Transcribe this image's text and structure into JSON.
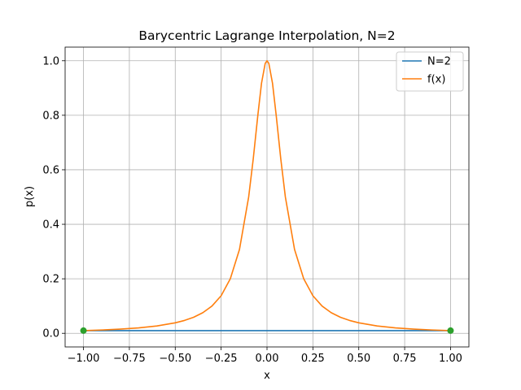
{
  "chart_data": {
    "type": "line",
    "title": "Barycentric Lagrange Interpolation, N=2",
    "xlabel": "x",
    "ylabel": "p(x)",
    "xlim": [
      -1.1,
      1.1
    ],
    "ylim": [
      -0.05,
      1.05
    ],
    "xticks": [
      -1.0,
      -0.75,
      -0.5,
      -0.25,
      0.0,
      0.25,
      0.5,
      0.75,
      1.0
    ],
    "xtick_labels": [
      "−1.00",
      "−0.75",
      "−0.50",
      "−0.25",
      "0.00",
      "0.25",
      "0.50",
      "0.75",
      "1.00"
    ],
    "yticks": [
      0.0,
      0.2,
      0.4,
      0.6,
      0.8,
      1.0
    ],
    "ytick_labels": [
      "0.0",
      "0.2",
      "0.4",
      "0.6",
      "0.8",
      "1.0"
    ],
    "grid": true,
    "legend_position": "top-right",
    "series": [
      {
        "name": "N=2",
        "color": "#1f77b4",
        "x": [
          -1.0,
          1.0
        ],
        "y": [
          0.0099,
          0.0099
        ]
      },
      {
        "name": "f(x)",
        "color": "#ff7f0e",
        "x": [
          -1.0,
          -0.9,
          -0.8,
          -0.7,
          -0.6,
          -0.5,
          -0.45,
          -0.4,
          -0.35,
          -0.3,
          -0.25,
          -0.2,
          -0.15,
          -0.1,
          -0.075,
          -0.05,
          -0.03,
          -0.01,
          0.0,
          0.01,
          0.03,
          0.05,
          0.075,
          0.1,
          0.15,
          0.2,
          0.25,
          0.3,
          0.35,
          0.4,
          0.45,
          0.5,
          0.6,
          0.7,
          0.8,
          0.9,
          1.0
        ],
        "y": [
          0.0099,
          0.0122,
          0.0154,
          0.02,
          0.027,
          0.0385,
          0.0471,
          0.0588,
          0.0755,
          0.1,
          0.1379,
          0.2,
          0.3077,
          0.5,
          0.64,
          0.8,
          0.9174,
          0.9901,
          1.0,
          0.9901,
          0.9174,
          0.8,
          0.64,
          0.5,
          0.3077,
          0.2,
          0.1379,
          0.1,
          0.0755,
          0.0588,
          0.0471,
          0.0385,
          0.027,
          0.02,
          0.0154,
          0.0122,
          0.0099
        ]
      }
    ],
    "nodes": {
      "color": "#2ca02c",
      "x": [
        -1.0,
        1.0
      ],
      "y": [
        0.0099,
        0.0099
      ]
    }
  }
}
